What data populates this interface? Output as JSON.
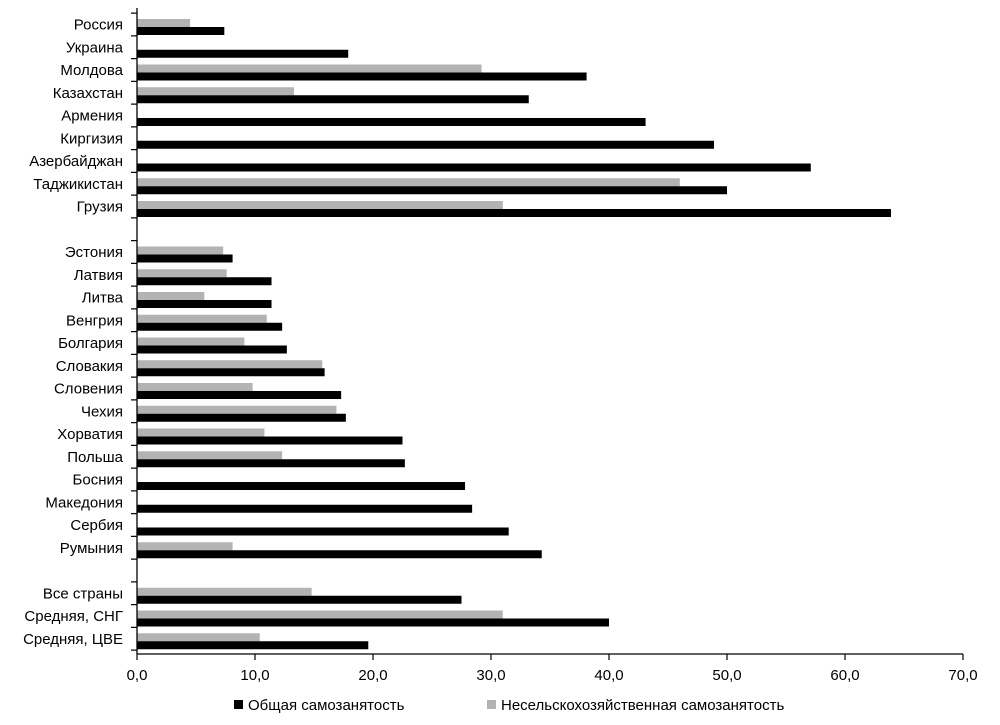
{
  "chart_data": {
    "type": "bar",
    "orientation": "horizontal",
    "xlim": [
      0,
      70
    ],
    "xticks": [
      "0,0",
      "10,0",
      "20,0",
      "30,0",
      "40,0",
      "50,0",
      "60,0",
      "70,0"
    ],
    "grid": false,
    "legend_position": "bottom",
    "series": [
      {
        "name": "Общая самозанятость",
        "color": "#000000"
      },
      {
        "name": "Несельскохозяйственная самозанятость",
        "color": "#b3b3b3"
      }
    ],
    "groups": [
      {
        "rows": [
          {
            "label": "Россия",
            "total": 7.4,
            "nonagri": 4.5
          },
          {
            "label": "Украина",
            "total": 17.9,
            "nonagri": null
          },
          {
            "label": "Молдова",
            "total": 38.1,
            "nonagri": 29.2
          },
          {
            "label": "Казахстан",
            "total": 33.2,
            "nonagri": 13.3
          },
          {
            "label": "Армения",
            "total": 43.1,
            "nonagri": null
          },
          {
            "label": "Киргизия",
            "total": 48.9,
            "nonagri": null
          },
          {
            "label": "Азербайджан",
            "total": 57.1,
            "nonagri": null
          },
          {
            "label": "Таджикистан",
            "total": 50.0,
            "nonagri": 46.0
          },
          {
            "label": "Грузия",
            "total": 63.9,
            "nonagri": 31.0
          }
        ]
      },
      {
        "rows": [
          {
            "label": "Эстония",
            "total": 8.1,
            "nonagri": 7.3
          },
          {
            "label": "Латвия",
            "total": 11.4,
            "nonagri": 7.6
          },
          {
            "label": "Литва",
            "total": 11.4,
            "nonagri": 5.7
          },
          {
            "label": "Венгрия",
            "total": 12.3,
            "nonagri": 11.0
          },
          {
            "label": "Болгария",
            "total": 12.7,
            "nonagri": 9.1
          },
          {
            "label": "Словакия",
            "total": 15.9,
            "nonagri": 15.7
          },
          {
            "label": "Словения",
            "total": 17.3,
            "nonagri": 9.8
          },
          {
            "label": "Чехия",
            "total": 17.7,
            "nonagri": 16.9
          },
          {
            "label": "Хорватия",
            "total": 22.5,
            "nonagri": 10.8
          },
          {
            "label": "Польша",
            "total": 22.7,
            "nonagri": 12.3
          },
          {
            "label": "Босния",
            "total": 27.8,
            "nonagri": null
          },
          {
            "label": "Македония",
            "total": 28.4,
            "nonagri": null
          },
          {
            "label": "Сербия",
            "total": 31.5,
            "nonagri": null
          },
          {
            "label": "Румыния",
            "total": 34.3,
            "nonagri": 8.1
          }
        ]
      },
      {
        "rows": [
          {
            "label": "Все страны",
            "total": 27.5,
            "nonagri": 14.8
          },
          {
            "label": "Средняя, СНГ",
            "total": 40.0,
            "nonagri": 31.0
          },
          {
            "label": "Средняя, ЦВЕ",
            "total": 19.6,
            "nonagri": 10.4
          }
        ]
      }
    ]
  }
}
